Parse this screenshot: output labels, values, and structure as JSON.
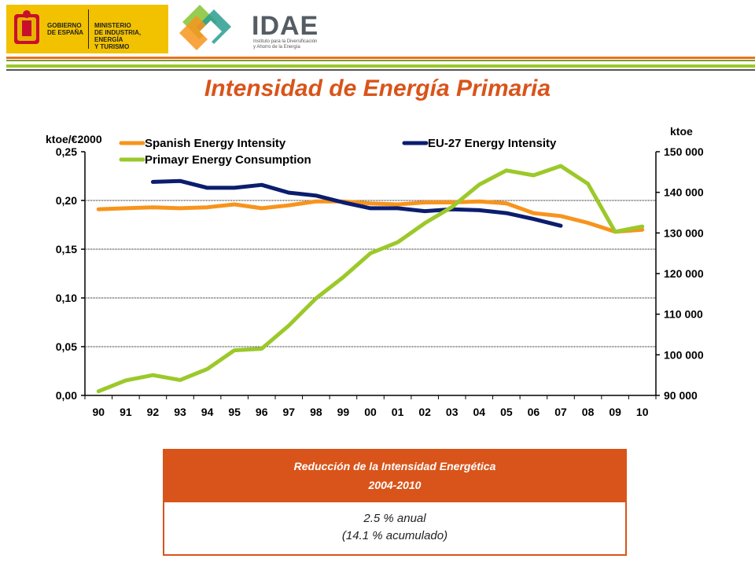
{
  "header": {
    "gov_line1": "GOBIERNO\nDE ESPAÑA",
    "gov_line2": "MINISTERIO\nDE INDUSTRIA, ENERGÍA\nY TURISMO",
    "idae_name": "IDAE",
    "idae_sub": "Instituto para la Diversificación\ny Ahorro de la Energía"
  },
  "title": "Intensidad de Energía Primaria",
  "colors": {
    "accent": "#d9541a",
    "spanish": "#f7941d",
    "eu": "#0b1d6e",
    "primary": "#9bc92a",
    "gov": "#f2c200"
  },
  "chart_data": {
    "type": "line",
    "categories": [
      "90",
      "91",
      "92",
      "93",
      "94",
      "95",
      "96",
      "97",
      "98",
      "99",
      "00",
      "01",
      "02",
      "03",
      "04",
      "05",
      "06",
      "07",
      "08",
      "09",
      "10"
    ],
    "y_left_label": "ktoe/€2000",
    "y_right_label": "ktoe",
    "y_left_ticks": [
      "0,00",
      "0,05",
      "0,10",
      "0,15",
      "0,20",
      "0,25"
    ],
    "y_right_ticks": [
      "90 000",
      "100 000",
      "110 000",
      "120 000",
      "130 000",
      "140 000",
      "150 000"
    ],
    "ylim_left": [
      0,
      0.25
    ],
    "ylim_right": [
      90000,
      150000
    ],
    "grid": true,
    "legend_position": "top",
    "series": [
      {
        "name": "Spanish Energy Intensity",
        "axis": "left",
        "values": [
          0.191,
          0.192,
          0.193,
          0.192,
          0.193,
          0.196,
          0.192,
          0.195,
          0.199,
          0.199,
          0.197,
          0.196,
          0.198,
          0.198,
          0.199,
          0.197,
          0.187,
          0.184,
          0.177,
          0.168,
          0.17
        ]
      },
      {
        "name": "EU-27 Energy Intensity",
        "axis": "left",
        "values": [
          null,
          null,
          0.219,
          0.22,
          0.213,
          0.213,
          0.216,
          0.208,
          0.205,
          0.198,
          0.192,
          0.192,
          0.189,
          0.191,
          0.19,
          0.187,
          0.181,
          0.174,
          null,
          null,
          null
        ]
      },
      {
        "name": "Primayr Energy Consumption",
        "axis": "right",
        "values": [
          91000,
          93700,
          95000,
          93800,
          96500,
          101100,
          101500,
          107200,
          113900,
          119100,
          125000,
          127700,
          132400,
          136400,
          141900,
          145400,
          144200,
          146500,
          142100,
          130300,
          131600
        ]
      }
    ]
  },
  "info": {
    "title1": "Reducción de la Intensidad Energética",
    "title2": "2004-2010",
    "body1": "2.5 % anual",
    "body2": "(14.1 % acumulado)"
  }
}
